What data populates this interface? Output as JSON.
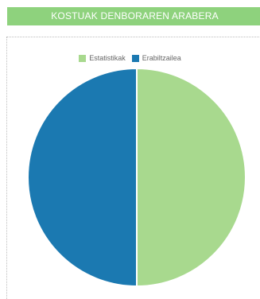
{
  "header": {
    "title": "KOSTUAK DENBORAREN ARABERA"
  },
  "colors": {
    "header_bg": "#8ed27d",
    "series_1": "#a8d98e",
    "series_2": "#1b79b1"
  },
  "legend": {
    "items": [
      {
        "label": "Estatistikak",
        "color": "#a8d98e"
      },
      {
        "label": "Erabiltzailea",
        "color": "#1b79b1"
      }
    ]
  },
  "chart_data": {
    "type": "pie",
    "title": "KOSTUAK DENBORAREN ARABERA",
    "categories": [
      "Estatistikak",
      "Erabiltzailea"
    ],
    "values": [
      50,
      50
    ],
    "legend_position": "top"
  }
}
